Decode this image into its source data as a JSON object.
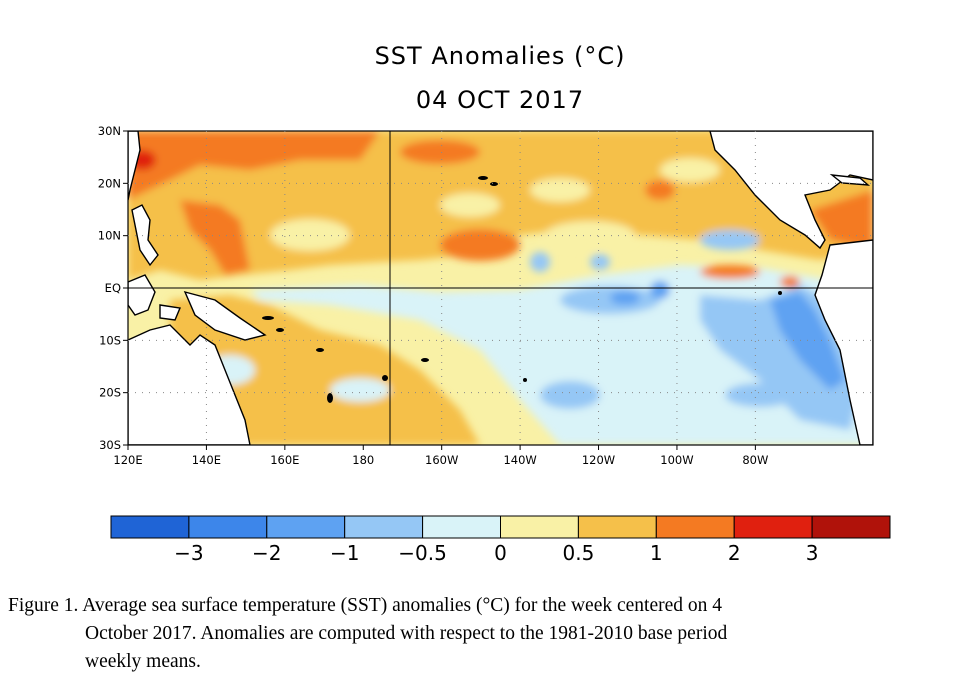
{
  "figure": {
    "title": "SST Anomalies (°C)",
    "date": "04 OCT 2017",
    "lat_labels": [
      "30N",
      "20N",
      "10N",
      "EQ",
      "10S",
      "20S",
      "30S"
    ],
    "lon_labels": [
      "120E",
      "140E",
      "160E",
      "180",
      "160W",
      "140W",
      "120W",
      "100W",
      "80W"
    ],
    "colorbar": {
      "colors": [
        "#1f64d6",
        "#3d86ea",
        "#5ea2f2",
        "#95c7f5",
        "#d9f3f8",
        "#f9f1a6",
        "#f5c04a",
        "#f47a22",
        "#e0200f",
        "#b0120a"
      ],
      "tick_labels": [
        "−3",
        "−2",
        "−1",
        "−0.5",
        "0",
        "0.5",
        "1",
        "2",
        "3"
      ]
    },
    "caption": [
      "Figure 1. Average sea surface temperature (SST) anomalies (°C) for the week centered on 4",
      "October 2017.  Anomalies are computed with respect to the 1981-2010 base period",
      "weekly means."
    ]
  }
}
